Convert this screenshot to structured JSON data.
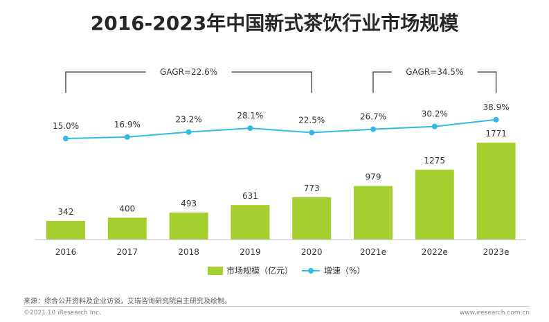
{
  "chart_data": {
    "type": "bar",
    "title": "2016-2023年中国新式茶饮行业市场规模",
    "categories": [
      "2016",
      "2017",
      "2018",
      "2019",
      "2020",
      "2021e",
      "2022e",
      "2023e"
    ],
    "series": [
      {
        "name": "市场规模（亿元）",
        "type": "bar",
        "values": [
          342,
          400,
          493,
          631,
          773,
          979,
          1275,
          1771
        ]
      },
      {
        "name": "增速（%）",
        "type": "line",
        "values": [
          15.0,
          16.9,
          23.2,
          28.1,
          22.5,
          26.7,
          30.2,
          38.9
        ]
      }
    ],
    "bar_labels": [
      "342",
      "400",
      "493",
      "631",
      "773",
      "979",
      "1275",
      "1771"
    ],
    "line_labels": [
      "15.0%",
      "16.9%",
      "23.2%",
      "28.1%",
      "22.5%",
      "26.7%",
      "30.2%",
      "38.9%"
    ],
    "annotations": [
      {
        "label": "GAGR=22.6%",
        "from_category": "2016",
        "to_category": "2020"
      },
      {
        "label": "GAGR=34.5%",
        "from_category": "2021e",
        "to_category": "2023e"
      }
    ],
    "legend_position": "bottom",
    "grid": false,
    "colors": {
      "bar": "#a5cf2e",
      "line": "#35b8e6",
      "bracket": "#555555"
    }
  },
  "footer": {
    "source": "来源：综合公开资料及企业访谈，艾瑞咨询研究院自主研究及绘制。",
    "copyright": "©2021.10 iResearch Inc.",
    "url": "www.iresearch.com.cn"
  }
}
